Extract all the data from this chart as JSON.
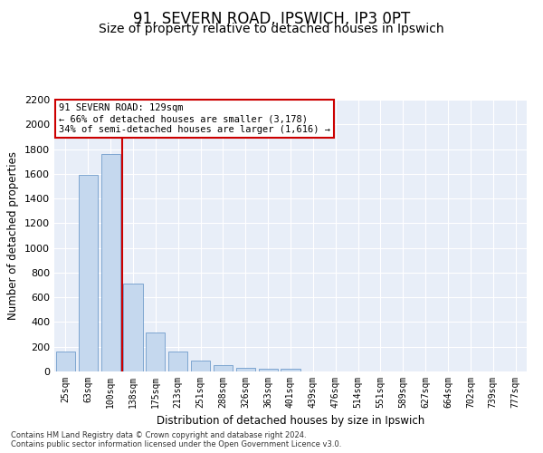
{
  "title": "91, SEVERN ROAD, IPSWICH, IP3 0PT",
  "subtitle": "Size of property relative to detached houses in Ipswich",
  "xlabel": "Distribution of detached houses by size in Ipswich",
  "ylabel": "Number of detached properties",
  "categories": [
    "25sqm",
    "63sqm",
    "100sqm",
    "138sqm",
    "175sqm",
    "213sqm",
    "251sqm",
    "288sqm",
    "326sqm",
    "363sqm",
    "401sqm",
    "439sqm",
    "476sqm",
    "514sqm",
    "551sqm",
    "589sqm",
    "627sqm",
    "664sqm",
    "702sqm",
    "739sqm",
    "777sqm"
  ],
  "values": [
    160,
    1590,
    1760,
    710,
    315,
    160,
    88,
    55,
    30,
    22,
    22,
    0,
    0,
    0,
    0,
    0,
    0,
    0,
    0,
    0,
    0
  ],
  "bar_color": "#c5d8ee",
  "bar_edge_color": "#5b8ec4",
  "vline_color": "#cc0000",
  "annotation_text": "91 SEVERN ROAD: 129sqm\n← 66% of detached houses are smaller (3,178)\n34% of semi-detached houses are larger (1,616) →",
  "annotation_box_color": "#ffffff",
  "annotation_box_edge": "#cc0000",
  "ylim": [
    0,
    2200
  ],
  "yticks": [
    0,
    200,
    400,
    600,
    800,
    1000,
    1200,
    1400,
    1600,
    1800,
    2000,
    2200
  ],
  "bg_color": "#e8eef8",
  "footer_line1": "Contains HM Land Registry data © Crown copyright and database right 2024.",
  "footer_line2": "Contains public sector information licensed under the Open Government Licence v3.0."
}
